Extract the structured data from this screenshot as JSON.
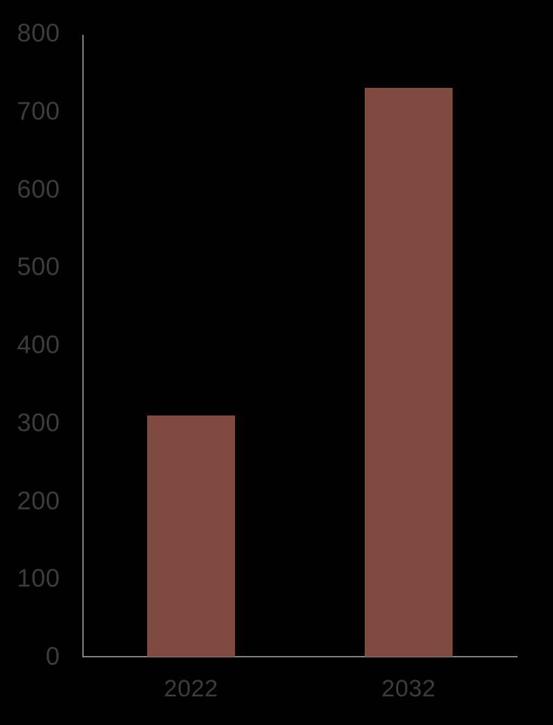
{
  "chart_data": {
    "type": "bar",
    "categories": [
      "2022",
      "2032"
    ],
    "values": [
      310,
      730
    ],
    "ylim": [
      0,
      800
    ],
    "yticks": [
      800,
      700,
      600,
      500,
      400,
      300,
      200,
      100,
      0
    ],
    "grid": false,
    "legend": false,
    "colors": {
      "background": "#000000",
      "bar": "#7E4A42",
      "axis": "#828282",
      "tick_label": "#3C3C3C"
    }
  }
}
